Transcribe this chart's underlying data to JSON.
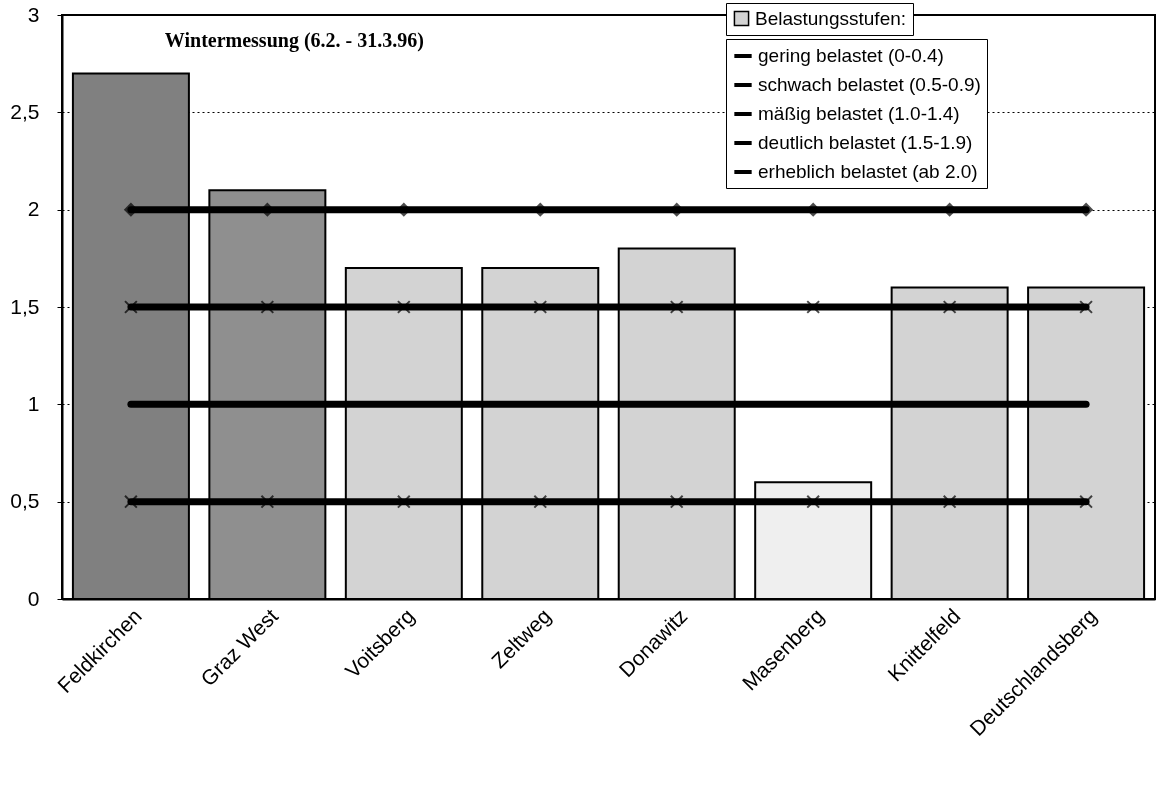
{
  "chart_data": {
    "type": "bar",
    "title": "Wintermessung (6.2. - 31.3.96)",
    "categories": [
      "Feldkirchen",
      "Graz West",
      "Voitsberg",
      "Zeltweg",
      "Donawitz",
      "Masenberg",
      "Knittelfeld",
      "Deutschlandsberg"
    ],
    "series": [
      {
        "name": "Belastungsstufen:",
        "color": "#d3d3d3",
        "colors": [
          "#808080",
          "#8f8f8f",
          "#d3d3d3",
          "#d3d3d3",
          "#d3d3d3",
          "#efefef",
          "#d3d3d3",
          "#d3d3d3"
        ],
        "values": [
          2.7,
          2.1,
          1.7,
          1.7,
          1.8,
          0.6,
          1.6,
          1.6
        ]
      },
      {
        "name": "gering belastet (0-0.4)",
        "type": "line",
        "color": "#000000",
        "marker": "none",
        "values": [
          null,
          null,
          null,
          null,
          null,
          null,
          null,
          null
        ]
      },
      {
        "name": "schwach belastet (0.5-0.9)",
        "type": "line",
        "color": "#000000",
        "marker": "cross",
        "values": [
          0.5,
          0.5,
          0.5,
          0.5,
          0.5,
          0.5,
          0.5,
          0.5
        ]
      },
      {
        "name": "mäßig belastet (1.0-1.4)",
        "type": "line",
        "color": "#000000",
        "marker": "none",
        "values": [
          1,
          1,
          1,
          1,
          1,
          1,
          1,
          1
        ]
      },
      {
        "name": "deutlich belastet (1.5-1.9)",
        "type": "line",
        "color": "#000000",
        "marker": "cross",
        "values": [
          1.5,
          1.5,
          1.5,
          1.5,
          1.5,
          1.5,
          1.5,
          1.5
        ]
      },
      {
        "name": "erheblich belastet (ab 2.0)",
        "type": "line",
        "color": "#000000",
        "marker": "diamond",
        "values": [
          2,
          2,
          2,
          2,
          2,
          2,
          2,
          2
        ]
      }
    ],
    "ylim": [
      0,
      3
    ],
    "yticks": [
      0,
      {
        "value": 0.5,
        "label": "0,5"
      },
      1,
      {
        "value": 1.5,
        "label": "1,5"
      },
      2,
      {
        "value": 2.5,
        "label": "2,5"
      },
      3
    ],
    "grid": "y",
    "legend": "top right"
  }
}
